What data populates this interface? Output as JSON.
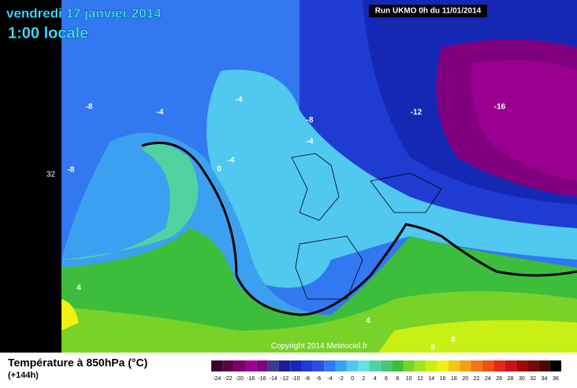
{
  "header": {
    "title": "vendredi 17 janvier 2014",
    "time": "1:00 locale",
    "run": "Run UKMO 0h du 11/01/2014"
  },
  "map": {
    "side_label": "32",
    "contour_labels": [
      "-8",
      "-4",
      "-4",
      "-8",
      "-4",
      "-4",
      "0",
      "-8",
      "-12",
      "-16",
      "4",
      "4",
      "8",
      "8"
    ],
    "copyright": "Copyright 2014 Meteociel.fr"
  },
  "legend": {
    "title": "Température à 850hPa (°C)",
    "step": "(+144h)",
    "labels": [
      "-24",
      "-22",
      "-20",
      "-18",
      "-16",
      "-14",
      "-12",
      "-10",
      "-8",
      "-6",
      "-4",
      "-2",
      "0",
      "2",
      "4",
      "6",
      "8",
      "10",
      "12",
      "14",
      "16",
      "18",
      "20",
      "22",
      "24",
      "26",
      "28",
      "30",
      "32",
      "34",
      "36"
    ],
    "colors": [
      "#3c0030",
      "#5a0048",
      "#7a0066",
      "#9a0090",
      "#800080",
      "#3c3c8c",
      "#1e1e96",
      "#1428b4",
      "#1e3cd2",
      "#2850e6",
      "#3278f0",
      "#3ca0f0",
      "#50c8f0",
      "#64e1e1",
      "#50d2a0",
      "#46c878",
      "#3cbe3c",
      "#78d228",
      "#a0e61e",
      "#c8f014",
      "#f0f014",
      "#f0c814",
      "#f0a014",
      "#f07814",
      "#f05014",
      "#e62814",
      "#c81414",
      "#a00a0a",
      "#780a0a",
      "#500505",
      "#000000"
    ]
  }
}
